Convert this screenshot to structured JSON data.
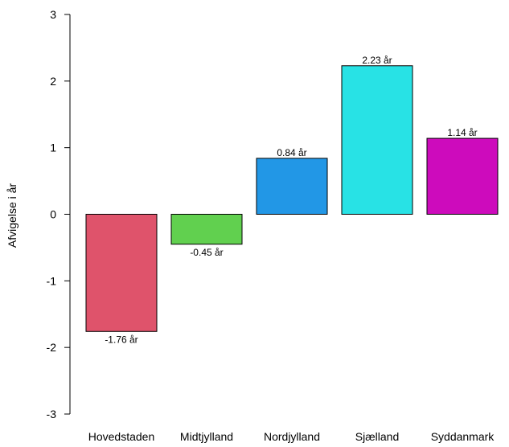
{
  "chart_data": {
    "type": "bar",
    "title": "",
    "xlabel": "",
    "ylabel": "Afvigelse i år",
    "ylim": [
      -3,
      3
    ],
    "yticks": [
      -3,
      -2,
      -1,
      0,
      1,
      2,
      3
    ],
    "categories": [
      "Hovedstaden",
      "Midtjylland",
      "Nordjylland",
      "Sjælland",
      "Syddanmark"
    ],
    "values": [
      -1.76,
      -0.45,
      0.84,
      2.23,
      1.14
    ],
    "value_labels": [
      "-1.76 år",
      "-0.45 år",
      "0.84 år",
      "2.23 år",
      "1.14 år"
    ],
    "colors": [
      "#df536b",
      "#61d04f",
      "#2297e6",
      "#28e2e5",
      "#cd0bbc"
    ],
    "grid": false,
    "legend": "none"
  }
}
